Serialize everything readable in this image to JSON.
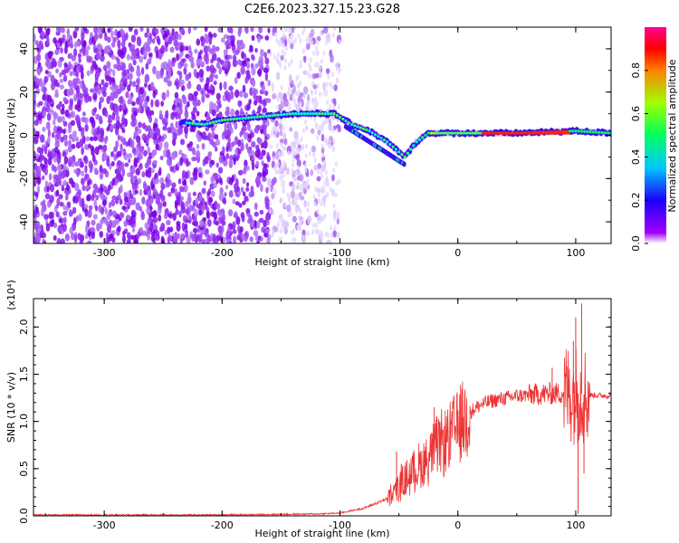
{
  "figure": {
    "title": "C2E6.2023.327.15.23.G28"
  },
  "chart_data": [
    {
      "type": "heatmap",
      "title": "C2E6.2023.327.15.23.G28",
      "xlabel": "Height of straight line (km)",
      "ylabel": "Frequency (Hz)",
      "xlim": [
        -360,
        130
      ],
      "ylim": [
        -50,
        50
      ],
      "xticks": [
        -300,
        -200,
        -100,
        0,
        100
      ],
      "yticks": [
        -40,
        -20,
        0,
        20,
        40
      ],
      "grid": false,
      "colorbar": {
        "label": "Normalized spectral amplitude",
        "range": [
          0,
          1
        ],
        "ticks": [
          0.0,
          0.2,
          0.4,
          0.6,
          0.8
        ],
        "colormap": [
          "#8000ff",
          "#0000ff",
          "#00ffff",
          "#00ff00",
          "#ffff00",
          "#ff0000",
          "#ff0080"
        ]
      },
      "ridge": {
        "description_points": [
          {
            "x": -235,
            "y": 6
          },
          {
            "x": -215,
            "y": 5
          },
          {
            "x": -200,
            "y": 7
          },
          {
            "x": -180,
            "y": 8
          },
          {
            "x": -160,
            "y": 9
          },
          {
            "x": -140,
            "y": 10
          },
          {
            "x": -120,
            "y": 10
          },
          {
            "x": -105,
            "y": 10
          },
          {
            "x": -90,
            "y": 5
          },
          {
            "x": -75,
            "y": 2
          },
          {
            "x": -60,
            "y": -3
          },
          {
            "x": -45,
            "y": -10
          },
          {
            "x": -35,
            "y": -3
          },
          {
            "x": -25,
            "y": 1
          },
          {
            "x": 0,
            "y": 1
          },
          {
            "x": 50,
            "y": 1
          },
          {
            "x": 100,
            "y": 2
          },
          {
            "x": 130,
            "y": 1
          }
        ]
      }
    },
    {
      "type": "line",
      "title": "",
      "xlabel": "Height of straight line (km)",
      "ylabel": "SNR (10 * v/v)",
      "yscale_label": "(x10⁴)",
      "xlim": [
        -360,
        130
      ],
      "ylim": [
        0,
        2.3
      ],
      "xticks": [
        -300,
        -200,
        -100,
        0,
        100
      ],
      "yticks": [
        0.0,
        0.5,
        1.0,
        1.5,
        2.0
      ],
      "grid": false,
      "series": [
        {
          "color": "#ee3333",
          "envelope": [
            {
              "x": -360,
              "y": 0.01
            },
            {
              "x": -200,
              "y": 0.01
            },
            {
              "x": -120,
              "y": 0.02
            },
            {
              "x": -100,
              "y": 0.03
            },
            {
              "x": -80,
              "y": 0.08
            },
            {
              "x": -60,
              "y": 0.18
            },
            {
              "x": -50,
              "y": 0.3
            },
            {
              "x": -40,
              "y": 0.45
            },
            {
              "x": -30,
              "y": 0.55
            },
            {
              "x": -20,
              "y": 0.7
            },
            {
              "x": -10,
              "y": 0.8
            },
            {
              "x": 0,
              "y": 0.95
            },
            {
              "x": 10,
              "y": 1.1
            },
            {
              "x": 20,
              "y": 1.18
            },
            {
              "x": 30,
              "y": 1.22
            },
            {
              "x": 50,
              "y": 1.27
            },
            {
              "x": 70,
              "y": 1.29
            },
            {
              "x": 90,
              "y": 1.3
            },
            {
              "x": 100,
              "y": 1.3
            },
            {
              "x": 110,
              "y": 1.28
            },
            {
              "x": 130,
              "y": 1.27
            }
          ],
          "spikes": [
            {
              "x": -52,
              "y": 0.68
            },
            {
              "x": -48,
              "y": 0.55
            },
            {
              "x": -20,
              "y": 1.15
            },
            {
              "x": -18,
              "y": 1.05
            },
            {
              "x": -15,
              "y": 0.92
            },
            {
              "x": 80,
              "y": 1.57
            },
            {
              "x": 98,
              "y": 1.85
            },
            {
              "x": 100,
              "y": 2.1
            },
            {
              "x": 105,
              "y": 2.25
            },
            {
              "x": 102,
              "y": 0.02
            },
            {
              "x": 107,
              "y": 0.45
            }
          ]
        }
      ]
    }
  ]
}
